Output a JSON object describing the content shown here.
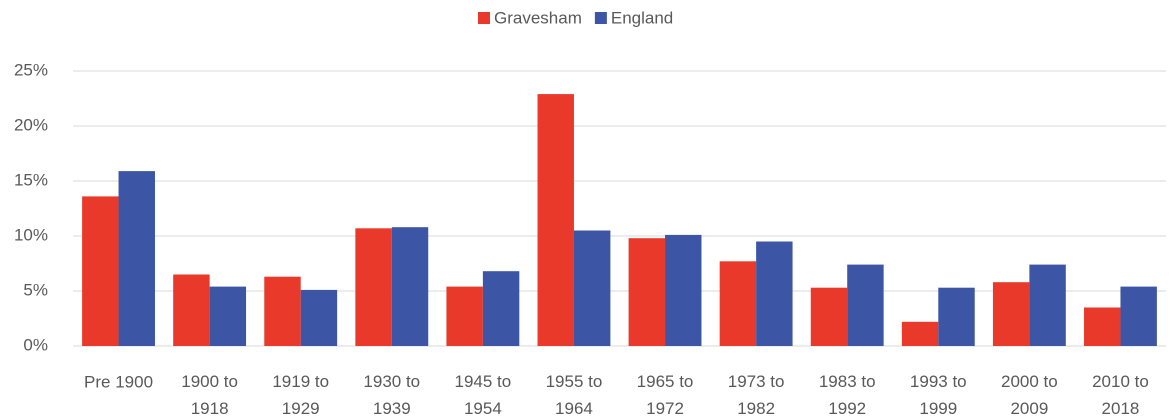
{
  "chart_data": {
    "type": "bar",
    "categories": [
      "Pre 1900",
      "1900 to 1918",
      "1919 to 1929",
      "1930 to 1939",
      "1945 to 1954",
      "1955 to 1964",
      "1965 to 1972",
      "1973 to 1982",
      "1983 to 1992",
      "1993 to 1999",
      "2000 to 2009",
      "2010 to 2018"
    ],
    "series": [
      {
        "name": "Gravesham",
        "color": "#e8392a",
        "values": [
          13.6,
          6.5,
          6.3,
          10.7,
          5.4,
          22.9,
          9.8,
          7.7,
          5.3,
          2.2,
          5.8,
          3.5
        ]
      },
      {
        "name": "England",
        "color": "#3d55a5",
        "values": [
          15.9,
          5.4,
          5.1,
          10.8,
          6.8,
          10.5,
          10.1,
          9.5,
          7.4,
          5.3,
          7.4,
          5.4
        ]
      }
    ],
    "ylim": [
      0,
      25
    ],
    "yticks": [
      {
        "value": 0,
        "label": "0%"
      },
      {
        "value": 5,
        "label": "5%"
      },
      {
        "value": 10,
        "label": "10%"
      },
      {
        "value": 15,
        "label": "15%"
      },
      {
        "value": 20,
        "label": "20%"
      },
      {
        "value": 25,
        "label": "25%"
      }
    ],
    "grid": true,
    "legend": "top"
  }
}
